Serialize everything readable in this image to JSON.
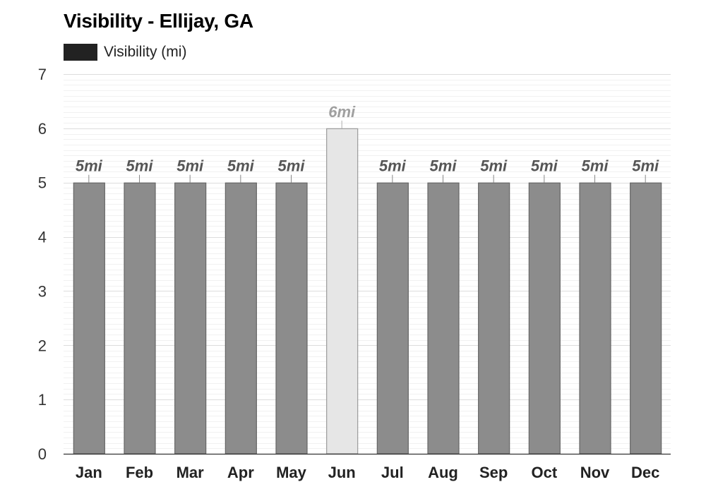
{
  "chart_data": {
    "type": "bar",
    "title": "Visibility - Ellijay, GA",
    "legend": {
      "label": "Visibility (mi)",
      "color": "#222222",
      "placement": "top-left"
    },
    "categories": [
      "Jan",
      "Feb",
      "Mar",
      "Apr",
      "May",
      "Jun",
      "Jul",
      "Aug",
      "Sep",
      "Oct",
      "Nov",
      "Dec"
    ],
    "series": [
      {
        "name": "Visibility (mi)",
        "values": [
          5,
          5,
          5,
          5,
          5,
          6,
          5,
          5,
          5,
          5,
          5,
          5
        ],
        "labels": [
          "5mi",
          "5mi",
          "5mi",
          "5mi",
          "5mi",
          "6mi",
          "5mi",
          "5mi",
          "5mi",
          "5mi",
          "5mi",
          "5mi"
        ]
      }
    ],
    "highlight_index": 5,
    "colors": {
      "bar": "#8c8c8c",
      "bar_highlight": "#e6e6e6",
      "bar_border": "#666666",
      "bar_highlight_border": "#9a9a9a",
      "label": "#555555",
      "label_highlight": "#a0a0a0"
    },
    "ylim": [
      0,
      7
    ],
    "yticks": [
      0,
      1,
      2,
      3,
      4,
      5,
      6,
      7
    ],
    "xlabel": "",
    "ylabel": "",
    "grid": true
  }
}
